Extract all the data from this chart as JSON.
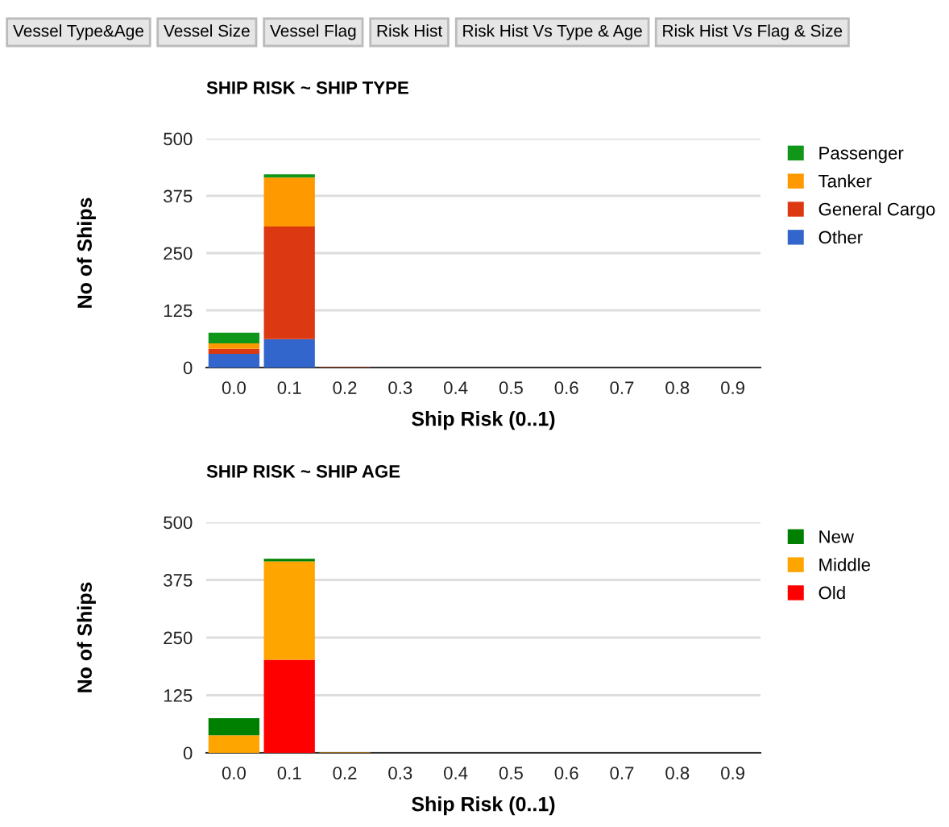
{
  "chart_data": [
    {
      "type": "bar",
      "title": "SHIP RISK ~ SHIP TYPE",
      "xlabel": "Ship Risk (0..1)",
      "ylabel": "No of Ships",
      "annotations": [
        "Vessel Type&Age",
        "Vessel Size",
        "Vessel Flag",
        "Risk Hist",
        "Risk Hist Vs Type & Age",
        "Risk Hist Vs Flag & Size"
      ],
      "categories": [
        "0.0",
        "0.1",
        "0.2",
        "0.3",
        "0.4",
        "0.5",
        "0.6",
        "0.7",
        "0.8",
        "0.9"
      ],
      "stacked": true,
      "ylim": [
        0,
        500
      ],
      "yticks": [
        0,
        125,
        250,
        375,
        500
      ],
      "grid": "y",
      "legend": "top right",
      "series": [
        {
          "name": "Other",
          "color": "#3366cc",
          "values": [
            30,
            62,
            0,
            0,
            0,
            0,
            0,
            0,
            0,
            0
          ]
        },
        {
          "name": "General Cargo",
          "color": "#dc3912",
          "values": [
            11,
            246,
            1,
            0,
            0,
            0,
            0,
            0,
            0,
            0
          ]
        },
        {
          "name": "Tanker",
          "color": "#ff9900",
          "values": [
            12,
            107,
            0,
            0,
            0,
            0,
            0,
            0,
            0,
            0
          ]
        },
        {
          "name": "Passenger",
          "color": "#109618",
          "values": [
            23,
            7,
            0,
            0,
            0,
            0,
            0,
            0,
            0,
            0
          ]
        }
      ]
    },
    {
      "type": "bar",
      "title": "SHIP RISK ~ SHIP AGE",
      "xlabel": "Ship Risk (0..1)",
      "ylabel": "No of Ships",
      "categories": [
        "0.0",
        "0.1",
        "0.2",
        "0.3",
        "0.4",
        "0.5",
        "0.6",
        "0.7",
        "0.8",
        "0.9"
      ],
      "stacked": true,
      "ylim": [
        0,
        500
      ],
      "yticks": [
        0,
        125,
        250,
        375,
        500
      ],
      "grid": "y",
      "legend": "top right",
      "series": [
        {
          "name": "Old",
          "color": "#ff0000",
          "values": [
            0,
            202,
            0,
            0,
            0,
            0,
            0,
            0,
            0,
            0
          ]
        },
        {
          "name": "Middle",
          "color": "#ffa500",
          "values": [
            38,
            213,
            1,
            0,
            0,
            0,
            0,
            0,
            0,
            0
          ]
        },
        {
          "name": "New",
          "color": "#008000",
          "values": [
            37,
            6,
            0,
            0,
            0,
            0,
            0,
            0,
            0,
            0
          ]
        }
      ]
    }
  ]
}
